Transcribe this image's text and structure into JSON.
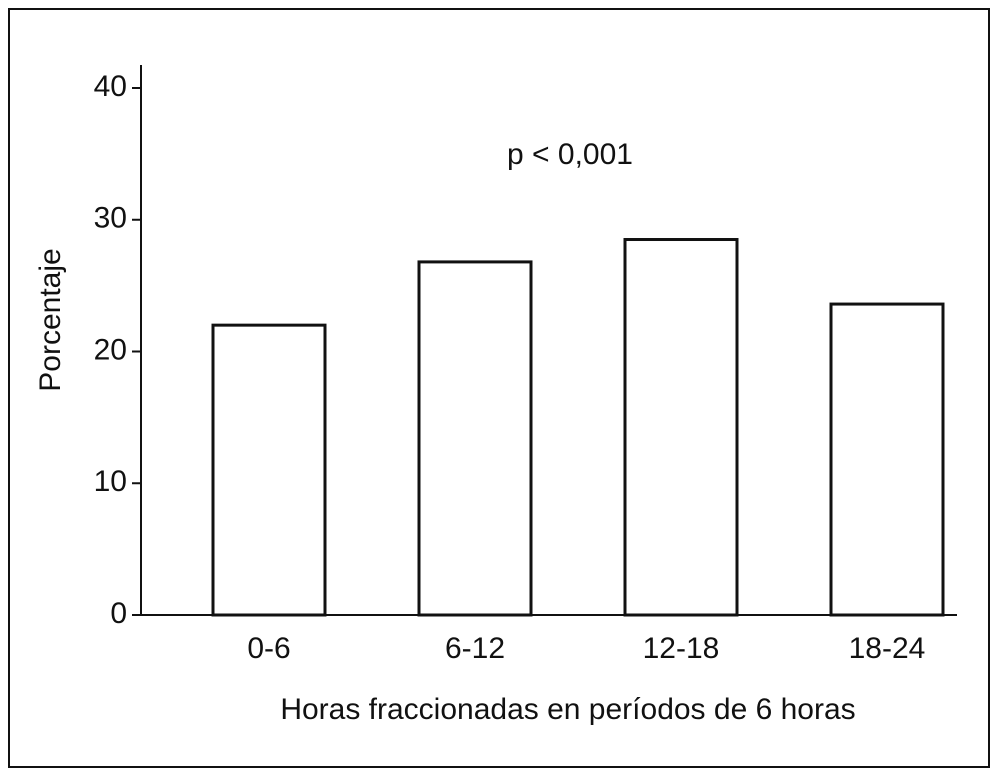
{
  "chart_data": {
    "type": "bar",
    "annotation": "p < 0,001",
    "x_label": "Horas fraccionadas en períodos de 6 horas",
    "y_label": "Porcentaje",
    "categories": [
      "0-6",
      "6-12",
      "12-18",
      "18-24"
    ],
    "values": [
      22,
      26.8,
      28.5,
      23.6
    ],
    "color": "#ffffff",
    "ylim": [
      0,
      40
    ],
    "yticks": [
      0,
      10,
      20,
      30,
      40
    ],
    "grid": false
  }
}
